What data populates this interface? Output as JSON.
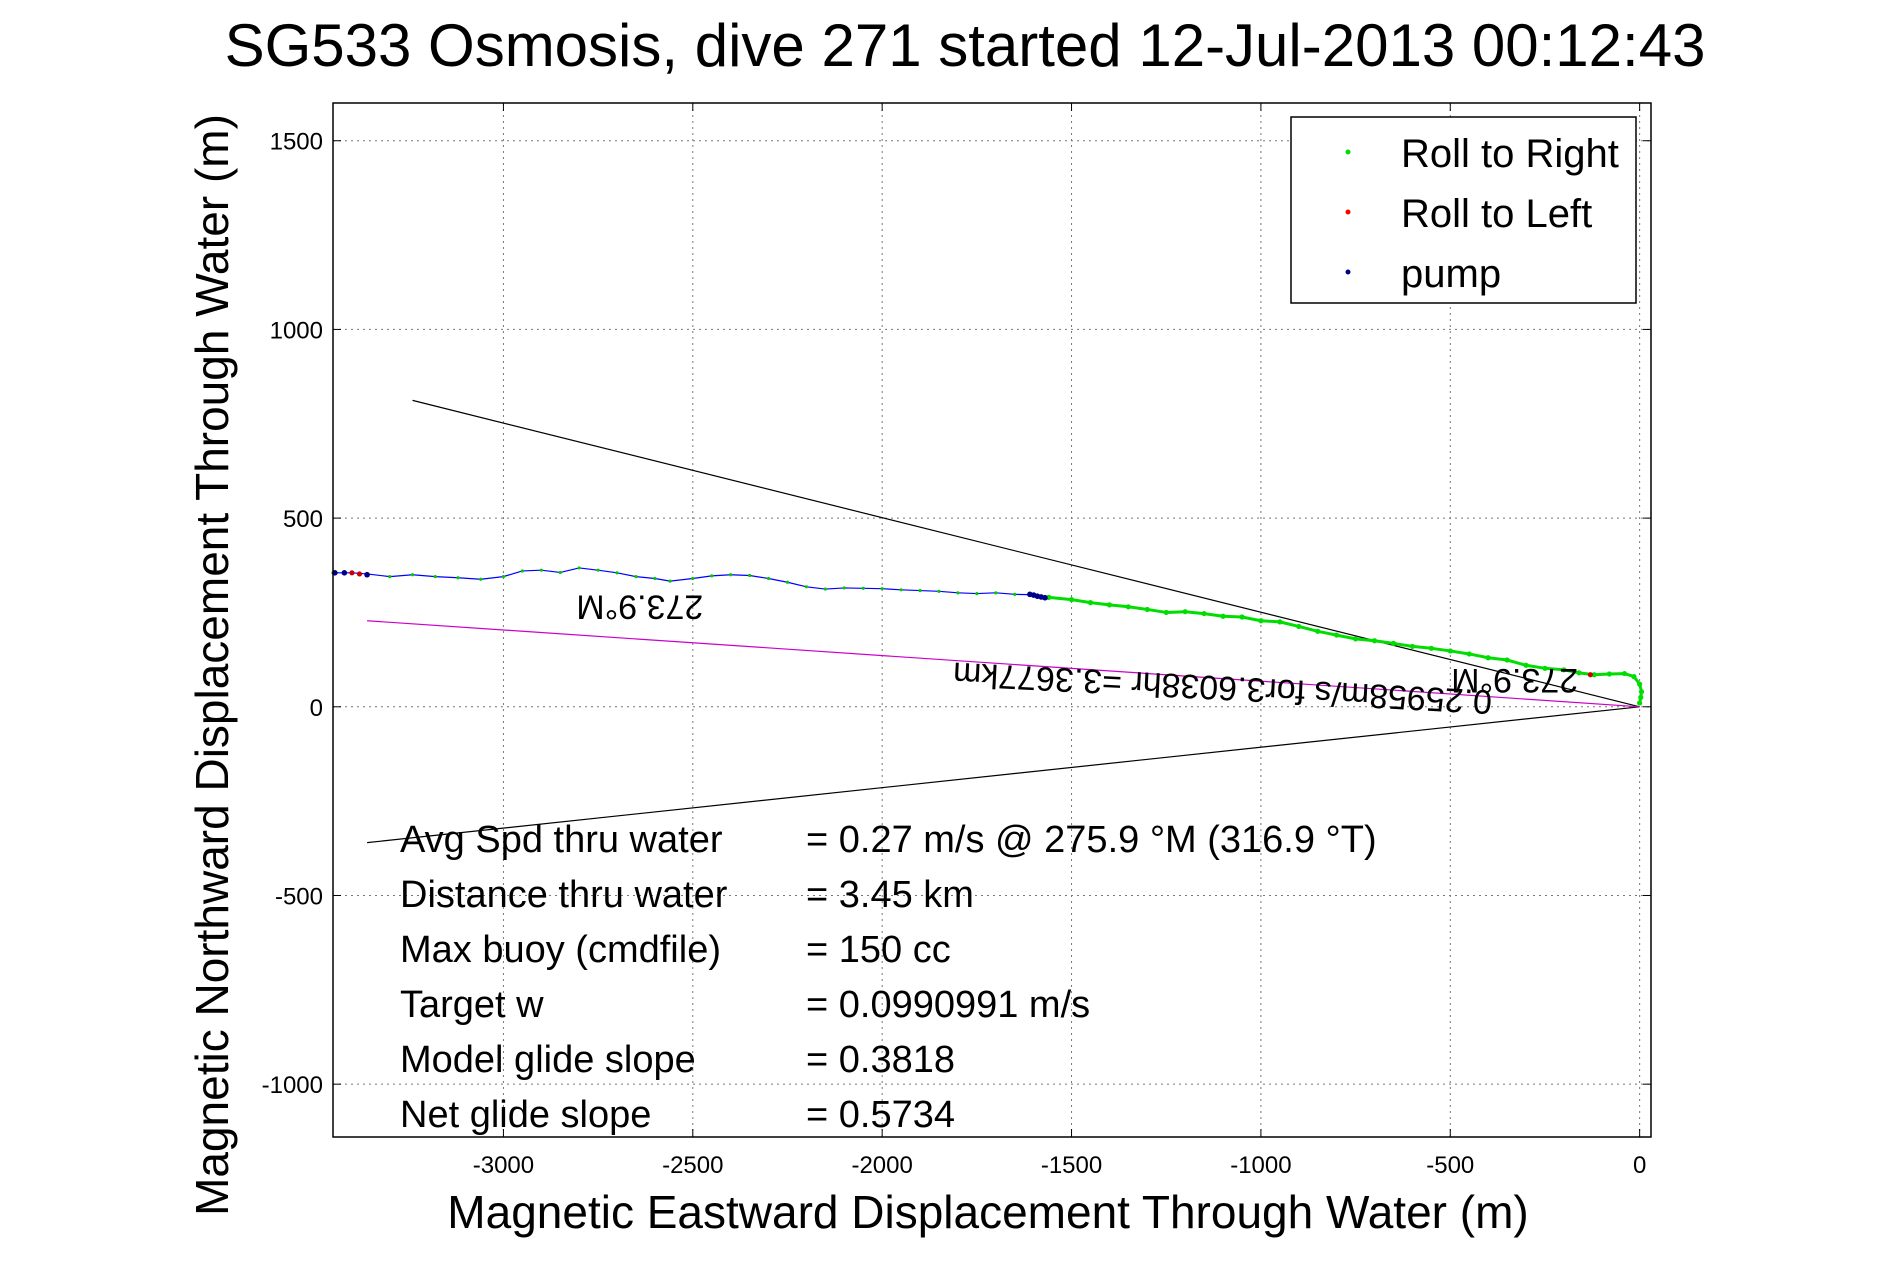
{
  "chart_data": {
    "type": "line",
    "title": "SG533 Osmosis, dive 271 started 12-Jul-2013 00:12:43",
    "xlabel": "Magnetic Eastward Displacement Through Water (m)",
    "ylabel": "Magnetic Northward Displacement Through Water (m)",
    "xlim": [
      -3450,
      30
    ],
    "ylim": [
      -1140,
      1600
    ],
    "xticks": [
      -3000,
      -2500,
      -2000,
      -1500,
      -1000,
      -500,
      0
    ],
    "yticks": [
      -1000,
      -500,
      0,
      500,
      1000,
      1500
    ],
    "grid": true,
    "legend_position": "top-right",
    "legend": [
      {
        "label": "Roll to Right",
        "color": "#00dd00"
      },
      {
        "label": "Roll to Left",
        "color": "#ff0000"
      },
      {
        "label": "pump",
        "color": "#000088"
      }
    ],
    "series": [
      {
        "color": "#0000ff",
        "x": [
          -3450,
          -3400,
          -3360,
          -3300,
          -3240,
          -3180,
          -3120,
          -3060,
          -3000,
          -2950,
          -2900,
          -2850,
          -2800,
          -2750,
          -2700,
          -2650,
          -2600,
          -2560,
          -2500,
          -2450,
          -2400,
          -2350,
          -2300,
          -2250,
          -2200,
          -2150,
          -2100,
          -2050,
          -2000,
          -1950,
          -1900,
          -1850,
          -1800,
          -1750,
          -1700,
          -1650,
          -1600,
          -1560
        ],
        "y": [
          355,
          355,
          352,
          345,
          350,
          345,
          342,
          338,
          345,
          360,
          362,
          356,
          368,
          362,
          355,
          345,
          340,
          333,
          340,
          347,
          350,
          348,
          340,
          330,
          318,
          312,
          315,
          314,
          313,
          310,
          308,
          306,
          302,
          300,
          302,
          298,
          297,
          290
        ]
      },
      {
        "name": "Roll to Right",
        "color": "#00dd00",
        "x": [
          -1560,
          -1500,
          -1450,
          -1400,
          -1350,
          -1300,
          -1250,
          -1200,
          -1150,
          -1100,
          -1050,
          -1000,
          -950,
          -900,
          -850,
          -800,
          -750,
          -700,
          -650,
          -600,
          -550,
          -500,
          -450,
          -400,
          -350,
          -300,
          -250,
          -200,
          -160,
          -120,
          -80,
          -40,
          -15,
          0,
          5,
          3,
          0
        ],
        "y": [
          290,
          284,
          276,
          270,
          265,
          258,
          250,
          252,
          247,
          240,
          238,
          228,
          225,
          213,
          200,
          190,
          180,
          175,
          168,
          160,
          155,
          148,
          140,
          130,
          124,
          110,
          102,
          98,
          90,
          85,
          87,
          88,
          80,
          60,
          40,
          25,
          10
        ]
      }
    ],
    "pump_points": {
      "color": "#000088",
      "x": [
        -1610,
        -1600,
        -1590,
        -1580,
        -1570,
        -3445,
        -3420,
        -3360
      ],
      "y": [
        298,
        296,
        293,
        291,
        289,
        355,
        355,
        350
      ]
    },
    "roll_left_points": {
      "color": "#cc0000",
      "x": [
        -3400,
        -3380,
        -130
      ],
      "y": [
        355,
        352,
        85
      ]
    },
    "reference_lines": [
      {
        "color": "#000000",
        "x": [
          -3240,
          0
        ],
        "y": [
          812,
          0
        ]
      },
      {
        "color": "#000000",
        "x": [
          -3360,
          0
        ],
        "y": [
          -360,
          0
        ]
      },
      {
        "color": "#cc00cc",
        "x": [
          -3360,
          0
        ],
        "y": [
          228,
          0
        ]
      }
    ],
    "annotations": [
      {
        "text": "273.9°M",
        "x": -2640,
        "y": 295,
        "rotation": 180
      },
      {
        "text": "273.9°M",
        "x": -330,
        "y": 100,
        "rotation": 180
      },
      {
        "text": "0.25958m/s for3.6038hr =3.3677km",
        "x": -1100,
        "y": 80,
        "rotation": 183
      }
    ],
    "stats": [
      {
        "label": "Avg Spd thru water",
        "value": "=  0.27 m/s @ 275.9 °M (316.9 °T)"
      },
      {
        "label": "Distance thru water",
        "value": "=  3.45 km"
      },
      {
        "label": "Max buoy (cmdfile)",
        "value": "= 150 cc"
      },
      {
        "label": "Target w",
        "value": "= 0.0990991 m/s"
      },
      {
        "label": "Model glide slope",
        "value": "= 0.3818"
      },
      {
        "label": "Net glide slope",
        "value": "= 0.5734"
      }
    ]
  }
}
